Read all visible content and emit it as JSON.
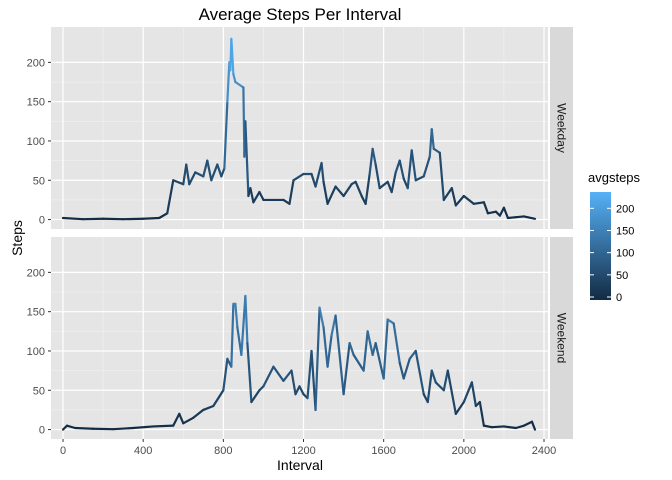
{
  "chart_data": {
    "type": "line",
    "title": "Average Steps Per Interval",
    "xlabel": "Interval",
    "ylabel": "Steps",
    "xlim": [
      -60,
      2420
    ],
    "ylim": [
      -12,
      245
    ],
    "x_ticks": [
      0,
      400,
      800,
      1200,
      1600,
      2000,
      2400
    ],
    "x_tick_labels": [
      "0",
      "400",
      "800",
      "1200",
      "1600",
      "2000",
      "2400"
    ],
    "y_ticks": [
      0,
      50,
      100,
      150,
      200
    ],
    "y_tick_labels": [
      "0",
      "50",
      "100",
      "150",
      "200"
    ],
    "grid": true,
    "facet_strip_position": "right",
    "colors": {
      "panel_bg": "#e5e5e5",
      "grid_major": "#ffffff",
      "strip_bg": "#d9d9d9",
      "low": "#132b43",
      "high": "#56b1f7"
    },
    "legend": {
      "title": "avgsteps",
      "placement": "right",
      "min": 0,
      "max": 230,
      "breaks": [
        0,
        50,
        100,
        150,
        200
      ],
      "break_labels": [
        "0",
        "50",
        "100",
        "150",
        "200"
      ]
    },
    "series": [
      {
        "name": "Weekday",
        "points": [
          [
            0,
            2
          ],
          [
            100,
            0.5
          ],
          [
            200,
            1
          ],
          [
            300,
            0.5
          ],
          [
            400,
            1
          ],
          [
            480,
            2
          ],
          [
            520,
            8
          ],
          [
            550,
            50
          ],
          [
            600,
            45
          ],
          [
            615,
            70
          ],
          [
            630,
            45
          ],
          [
            660,
            60
          ],
          [
            700,
            55
          ],
          [
            720,
            75
          ],
          [
            740,
            50
          ],
          [
            770,
            70
          ],
          [
            790,
            55
          ],
          [
            805,
            65
          ],
          [
            820,
            150
          ],
          [
            830,
            200
          ],
          [
            835,
            190
          ],
          [
            840,
            230
          ],
          [
            850,
            185
          ],
          [
            860,
            175
          ],
          [
            900,
            168
          ],
          [
            905,
            80
          ],
          [
            910,
            125
          ],
          [
            925,
            30
          ],
          [
            935,
            40
          ],
          [
            950,
            22
          ],
          [
            980,
            35
          ],
          [
            1000,
            25
          ],
          [
            1050,
            25
          ],
          [
            1100,
            25
          ],
          [
            1130,
            20
          ],
          [
            1150,
            50
          ],
          [
            1200,
            58
          ],
          [
            1240,
            58
          ],
          [
            1260,
            42
          ],
          [
            1290,
            72
          ],
          [
            1300,
            48
          ],
          [
            1320,
            20
          ],
          [
            1360,
            42
          ],
          [
            1400,
            30
          ],
          [
            1440,
            45
          ],
          [
            1460,
            48
          ],
          [
            1490,
            30
          ],
          [
            1510,
            20
          ],
          [
            1530,
            58
          ],
          [
            1545,
            90
          ],
          [
            1560,
            70
          ],
          [
            1580,
            40
          ],
          [
            1620,
            48
          ],
          [
            1640,
            35
          ],
          [
            1660,
            60
          ],
          [
            1680,
            75
          ],
          [
            1700,
            52
          ],
          [
            1720,
            40
          ],
          [
            1740,
            88
          ],
          [
            1760,
            50
          ],
          [
            1800,
            55
          ],
          [
            1830,
            80
          ],
          [
            1840,
            115
          ],
          [
            1850,
            90
          ],
          [
            1880,
            85
          ],
          [
            1900,
            25
          ],
          [
            1940,
            40
          ],
          [
            1960,
            18
          ],
          [
            2000,
            30
          ],
          [
            2050,
            20
          ],
          [
            2100,
            22
          ],
          [
            2120,
            8
          ],
          [
            2160,
            10
          ],
          [
            2180,
            5
          ],
          [
            2200,
            15
          ],
          [
            2220,
            2
          ],
          [
            2260,
            3
          ],
          [
            2300,
            4
          ],
          [
            2355,
            1
          ]
        ]
      },
      {
        "name": "Weekend",
        "points": [
          [
            0,
            0
          ],
          [
            20,
            5
          ],
          [
            60,
            2
          ],
          [
            150,
            1
          ],
          [
            250,
            0.5
          ],
          [
            350,
            2
          ],
          [
            450,
            4
          ],
          [
            550,
            5
          ],
          [
            580,
            20
          ],
          [
            600,
            8
          ],
          [
            650,
            15
          ],
          [
            700,
            25
          ],
          [
            750,
            30
          ],
          [
            800,
            50
          ],
          [
            820,
            90
          ],
          [
            840,
            80
          ],
          [
            850,
            160
          ],
          [
            860,
            160
          ],
          [
            870,
            130
          ],
          [
            890,
            95
          ],
          [
            910,
            170
          ],
          [
            920,
            110
          ],
          [
            940,
            35
          ],
          [
            980,
            50
          ],
          [
            1000,
            55
          ],
          [
            1050,
            80
          ],
          [
            1100,
            62
          ],
          [
            1140,
            75
          ],
          [
            1160,
            45
          ],
          [
            1180,
            55
          ],
          [
            1200,
            45
          ],
          [
            1220,
            40
          ],
          [
            1240,
            100
          ],
          [
            1260,
            25
          ],
          [
            1280,
            155
          ],
          [
            1300,
            130
          ],
          [
            1320,
            80
          ],
          [
            1340,
            120
          ],
          [
            1360,
            145
          ],
          [
            1400,
            45
          ],
          [
            1430,
            110
          ],
          [
            1450,
            95
          ],
          [
            1500,
            75
          ],
          [
            1520,
            125
          ],
          [
            1545,
            95
          ],
          [
            1560,
            110
          ],
          [
            1600,
            65
          ],
          [
            1620,
            140
          ],
          [
            1650,
            135
          ],
          [
            1680,
            85
          ],
          [
            1700,
            65
          ],
          [
            1730,
            90
          ],
          [
            1760,
            100
          ],
          [
            1800,
            45
          ],
          [
            1820,
            35
          ],
          [
            1840,
            75
          ],
          [
            1860,
            60
          ],
          [
            1900,
            50
          ],
          [
            1920,
            75
          ],
          [
            1960,
            20
          ],
          [
            2000,
            35
          ],
          [
            2040,
            60
          ],
          [
            2060,
            30
          ],
          [
            2080,
            35
          ],
          [
            2100,
            5
          ],
          [
            2140,
            3
          ],
          [
            2200,
            4
          ],
          [
            2260,
            2
          ],
          [
            2300,
            5
          ],
          [
            2340,
            10
          ],
          [
            2355,
            0
          ]
        ]
      }
    ]
  }
}
